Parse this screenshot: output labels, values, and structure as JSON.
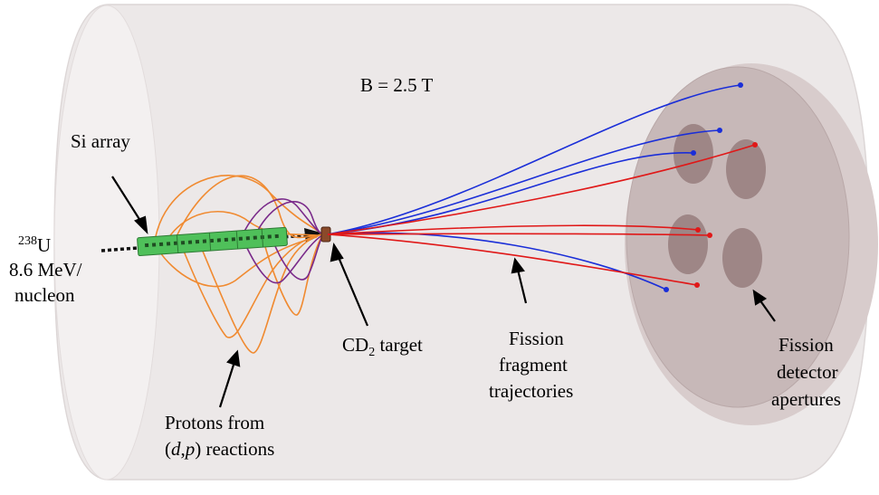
{
  "field_label": "B = 2.5 T",
  "beam": {
    "isotope_mass": "238",
    "isotope_symbol": "U",
    "energy_line1": "8.6 MeV/",
    "energy_line2": "nucleon"
  },
  "si_array_label": "Si array",
  "target": {
    "label_prefix": "CD",
    "label_subscript": "2",
    "label_suffix": " target"
  },
  "protons": {
    "line1": "Protons from",
    "line2_open": "(",
    "line2_d": "d",
    "line2_comma": ",",
    "line2_p": "p",
    "line2_close": ") reactions"
  },
  "fission_fragments": {
    "line1": "Fission",
    "line2": "fragment",
    "line3": "trajectories"
  },
  "fission_detector": {
    "line1": "Fission",
    "line2": "detector",
    "line3": "apertures"
  },
  "colors": {
    "cylinder": "#ece8e8",
    "cylinder_edge": "#d9d3d3",
    "end_cap": "#c9bcbc",
    "aperture": "#9b8585",
    "si_array": "#4fc05a",
    "target": "#8a4a2a",
    "proton_tracks": "#f08a30",
    "proton_tracks_2": "#7a2a8a",
    "fragment_blue": "#1a2ed8",
    "fragment_red": "#e01818"
  }
}
